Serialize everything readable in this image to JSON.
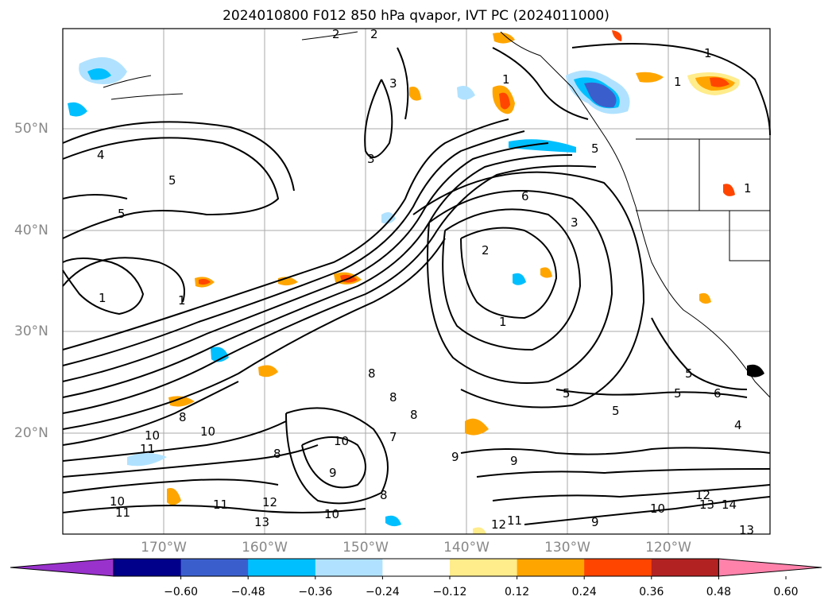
{
  "title": "2024010800 F012 850 hPa qvapor, IVT PC (2024011000)",
  "map": {
    "lon_labels": [
      "170°W",
      "160°W",
      "150°W",
      "140°W",
      "130°W",
      "120°W"
    ],
    "lat_labels": [
      "50°N",
      "40°N",
      "30°N",
      "20°N"
    ],
    "contour_labels": [
      "1",
      "2",
      "3",
      "4",
      "5",
      "6",
      "7",
      "8",
      "9",
      "10",
      "11",
      "12",
      "13",
      "14"
    ],
    "label_color": "#888888"
  },
  "colorbar": {
    "ticks": [
      "−0.60",
      "−0.48",
      "−0.36",
      "−0.24",
      "−0.12",
      "0.12",
      "0.24",
      "0.36",
      "0.48",
      "0.60"
    ],
    "colors": [
      "#9932cc",
      "#00008b",
      "#3a5fcd",
      "#00bfff",
      "#b0e2ff",
      "#ffffff",
      "#ffec8b",
      "#ffa500",
      "#ff4500",
      "#b22222",
      "#ff82ab"
    ]
  }
}
